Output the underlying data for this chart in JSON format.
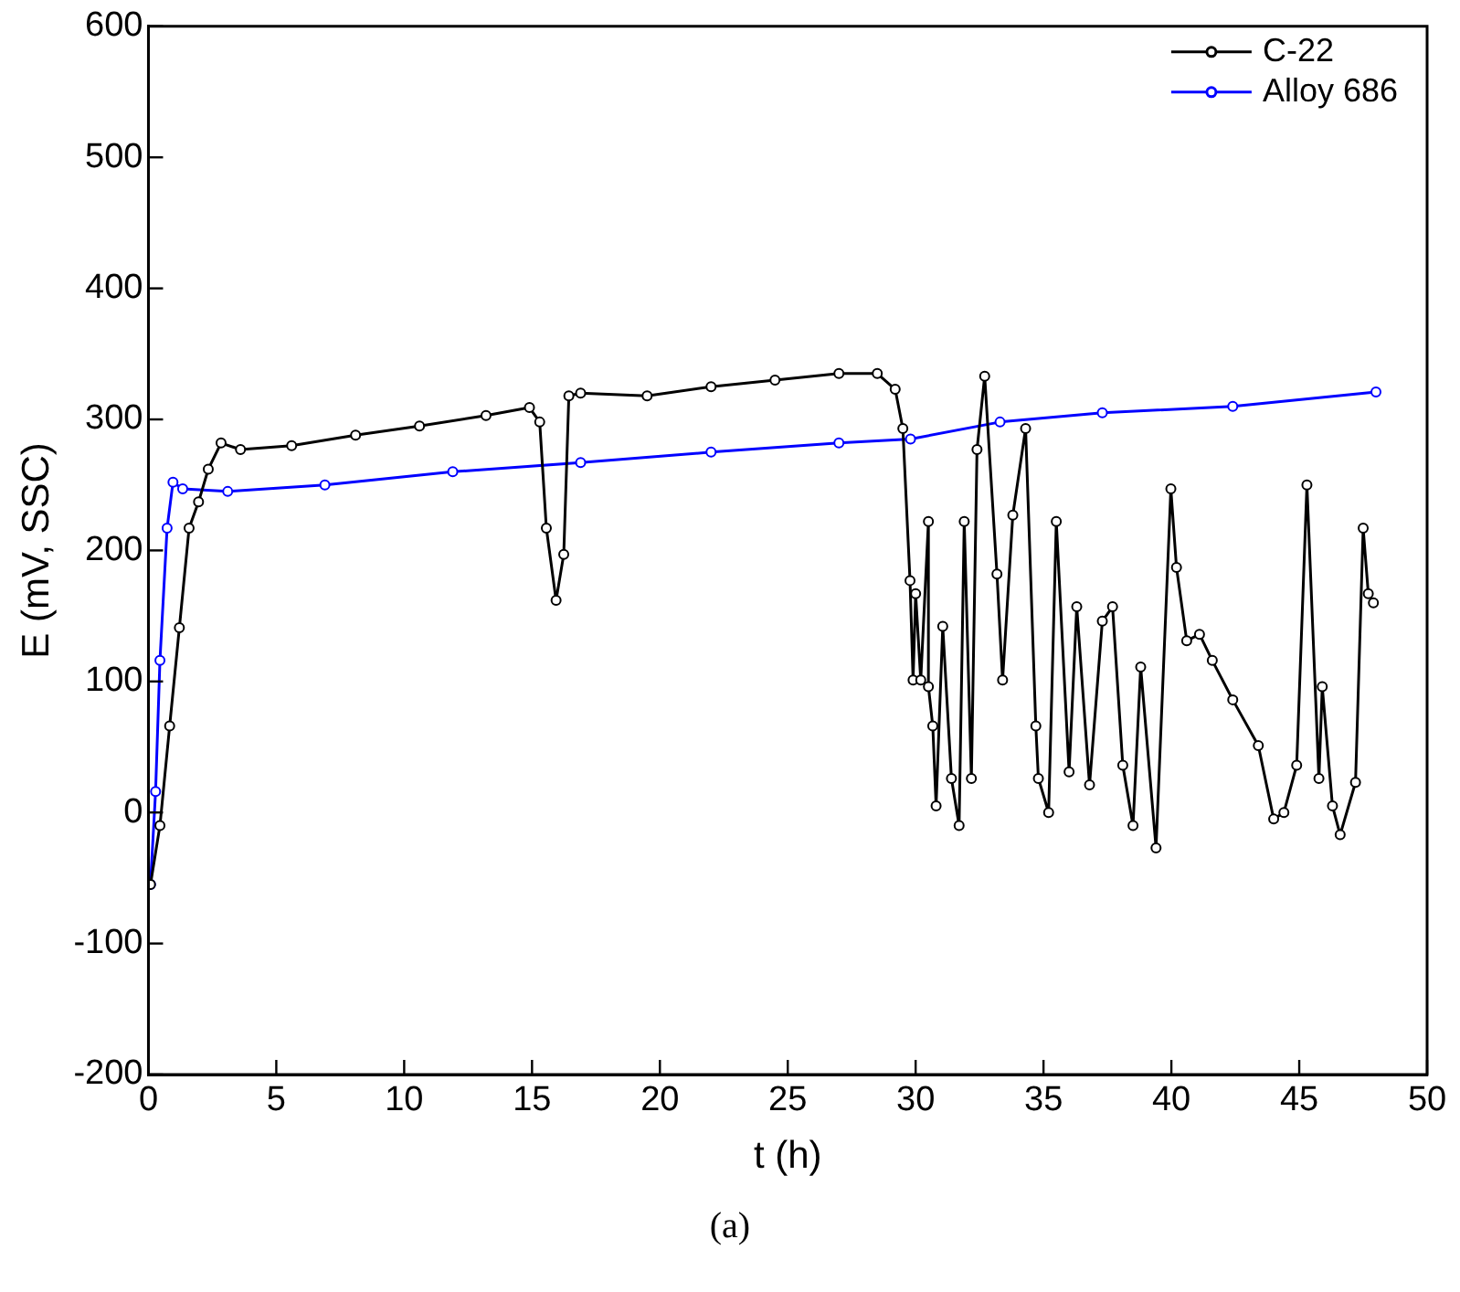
{
  "chart_data": {
    "type": "line",
    "xlabel": "t (h)",
    "ylabel": "E (mV, SSC)",
    "annotations": [
      "(a)"
    ],
    "xlim": [
      0,
      50
    ],
    "xticks": [
      0,
      5,
      10,
      15,
      20,
      25,
      30,
      35,
      40,
      45,
      50
    ],
    "ylim": [
      -200,
      600
    ],
    "yticks": [
      -200,
      -100,
      0,
      100,
      200,
      300,
      400,
      500,
      600
    ],
    "grid": false,
    "legend": "top right",
    "marker": "circle",
    "line_style": "solid",
    "series": [
      {
        "name": "C-22",
        "color": "#000000",
        "x": [
          0.08,
          0.45,
          0.83,
          1.21,
          1.59,
          1.96,
          2.34,
          2.84,
          3.6,
          5.6,
          8.1,
          10.6,
          13.2,
          14.9,
          15.3,
          15.56,
          15.94,
          16.24,
          16.44,
          16.9,
          19.5,
          22.0,
          24.5,
          27.0,
          28.5,
          29.2,
          29.5,
          29.78,
          29.9,
          30.0,
          30.2,
          30.5,
          30.5,
          30.67,
          30.8,
          31.06,
          31.4,
          31.7,
          31.9,
          32.18,
          32.4,
          32.7,
          33.18,
          33.4,
          33.8,
          34.3,
          34.7,
          34.8,
          35.2,
          35.5,
          36.0,
          36.3,
          36.8,
          37.3,
          37.7,
          38.1,
          38.5,
          38.8,
          39.4,
          39.98,
          40.2,
          40.6,
          41.1,
          41.6,
          42.4,
          43.4,
          44.0,
          44.4,
          44.9,
          45.3,
          45.77,
          45.9,
          46.3,
          46.6,
          47.2,
          47.5,
          47.7,
          47.9
        ],
        "values": [
          -55,
          -10,
          66,
          141,
          217,
          237,
          262,
          282,
          277,
          280,
          288,
          295,
          303,
          309,
          298,
          217,
          162,
          197,
          318,
          320,
          318,
          325,
          330,
          335,
          335,
          323,
          293,
          177,
          101,
          167,
          101,
          222,
          96,
          66,
          5,
          142,
          26,
          -10,
          222,
          26,
          277,
          333,
          182,
          101,
          227,
          293,
          66,
          26,
          0,
          222,
          31,
          157,
          21,
          146,
          157,
          36,
          -10,
          111,
          -27,
          247,
          187,
          131,
          136,
          116,
          86,
          51,
          -5,
          0,
          36,
          250,
          26,
          96,
          5,
          -17,
          23,
          217,
          167,
          160
        ]
      },
      {
        "name": "Alloy 686",
        "color": "#0000ff",
        "x": [
          0.08,
          0.28,
          0.45,
          0.73,
          0.96,
          1.34,
          3.1,
          6.9,
          11.9,
          16.9,
          22,
          27,
          29.8,
          33.3,
          37.3,
          42.4,
          48.0
        ],
        "values": [
          -55,
          16,
          116,
          217,
          252,
          247,
          245,
          250,
          260,
          267,
          275,
          282,
          285,
          298,
          305,
          310,
          321
        ]
      }
    ]
  }
}
